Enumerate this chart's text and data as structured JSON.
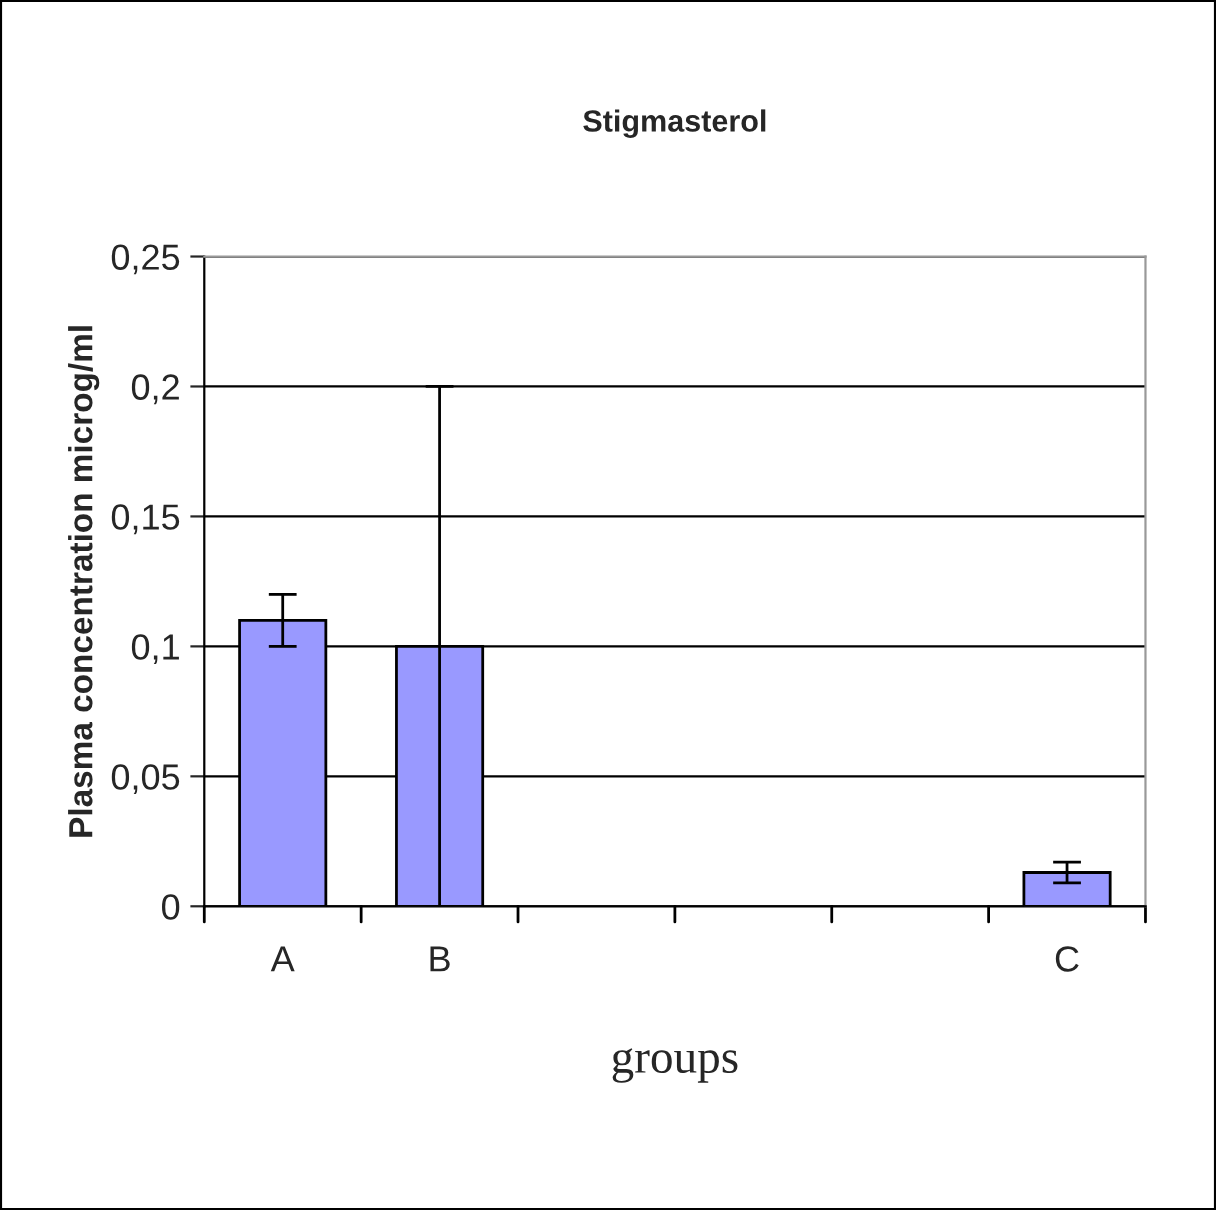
{
  "chart_data": {
    "type": "bar",
    "title": "Stigmasterol",
    "xlabel": "groups",
    "ylabel": "Plasma concentration microg/ml",
    "categories": [
      "A",
      "B",
      null,
      null,
      null,
      "C"
    ],
    "values": [
      0.11,
      0.1,
      null,
      null,
      null,
      0.013
    ],
    "errors": [
      0.01,
      0.1,
      null,
      null,
      null,
      0.004
    ],
    "color": "#9999ff",
    "ylim": [
      0,
      0.25
    ],
    "yticks": [
      0,
      {
        "value": 0.05,
        "label": "0,05"
      },
      {
        "value": 0.1,
        "label": "0,1"
      },
      {
        "value": 0.15,
        "label": "0,15"
      },
      {
        "value": 0.2,
        "label": "0,2"
      },
      {
        "value": 0.25,
        "label": "0,25"
      }
    ],
    "grid": "y",
    "legend": false
  }
}
